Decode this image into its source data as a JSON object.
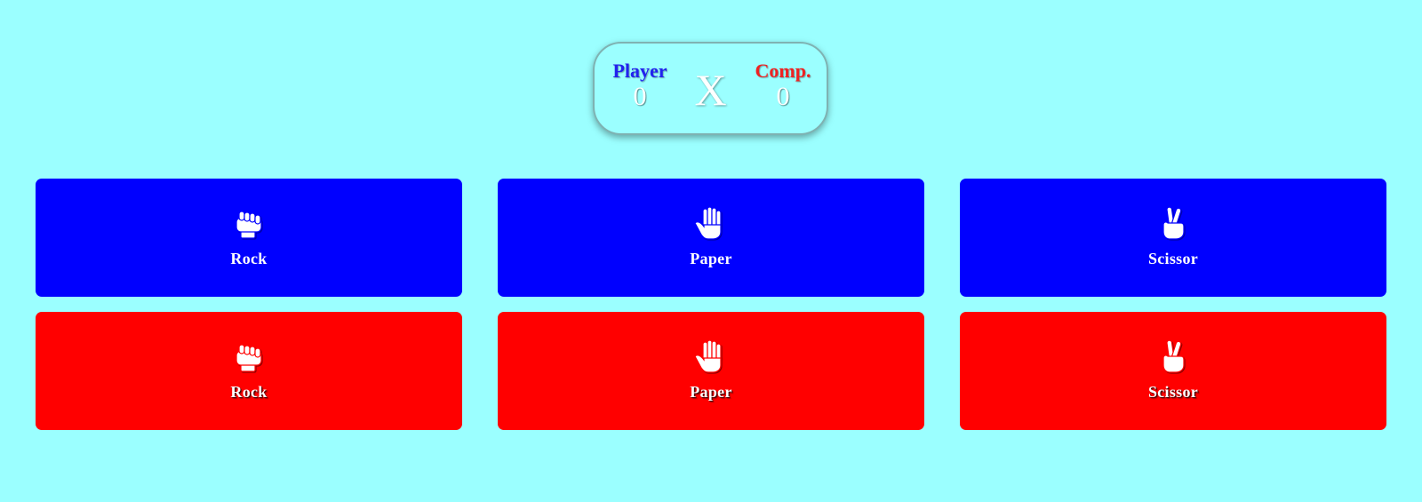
{
  "scoreboard": {
    "player_label": "Player",
    "player_score": "0",
    "versus": "X",
    "computer_label": "Comp.",
    "computer_score": "0"
  },
  "colors": {
    "background": "#9bffff",
    "player": "#0000ff",
    "computer": "#ff0000"
  },
  "player_choices": [
    {
      "label": "Rock",
      "icon": "fist-icon"
    },
    {
      "label": "Paper",
      "icon": "open-hand-icon"
    },
    {
      "label": "Scissor",
      "icon": "victory-hand-icon"
    }
  ],
  "computer_choices": [
    {
      "label": "Rock",
      "icon": "fist-icon"
    },
    {
      "label": "Paper",
      "icon": "open-hand-icon"
    },
    {
      "label": "Scissor",
      "icon": "victory-hand-icon"
    }
  ]
}
